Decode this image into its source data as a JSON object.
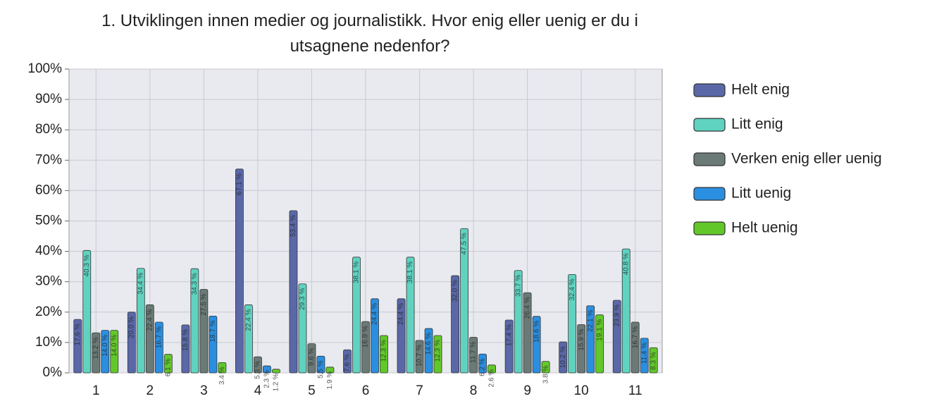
{
  "chart_data": {
    "type": "bar",
    "title": "1. Utviklingen innen medier og journalistikk. Hvor enig eller uenig er du i utsagnene nedenfor?",
    "categories": [
      "1",
      "2",
      "3",
      "4",
      "5",
      "6",
      "7",
      "8",
      "9",
      "10",
      "11"
    ],
    "series": [
      {
        "name": "Helt enig",
        "color": "#5a68a8",
        "values": [
          17.6,
          20.0,
          15.8,
          67.1,
          53.4,
          7.6,
          24.4,
          32.0,
          17.4,
          10.2,
          23.9
        ],
        "value_labels": [
          "17.6 %",
          "20.0 %",
          "15.8 %",
          "67.1 %",
          "53.4 %",
          "7.6 %",
          "24.4 %",
          "32.0 %",
          "17.4 %",
          "10.2 %",
          "23.9 %"
        ]
      },
      {
        "name": "Litt enig",
        "color": "#5fd3c0",
        "values": [
          40.3,
          34.4,
          34.3,
          22.4,
          29.3,
          38.1,
          38.1,
          47.5,
          33.7,
          32.4,
          40.8
        ],
        "value_labels": [
          "40.3 %",
          "34.4 %",
          "34.3 %",
          "22.4 %",
          "29.3 %",
          "38.1 %",
          "38.1 %",
          "47.5 %",
          "33.7 %",
          "32.4 %",
          "40.8 %"
        ]
      },
      {
        "name": "Verken enig eller uenig",
        "color": "#6b7a77",
        "values": [
          13.2,
          22.4,
          27.5,
          5.3,
          9.6,
          16.9,
          10.7,
          11.7,
          26.4,
          15.9,
          16.7
        ],
        "value_labels": [
          "13.2 %",
          "22.4 %",
          "27.5 %",
          "5.3 %",
          "9.6 %",
          "16.9 %",
          "10.7 %",
          "11.7 %",
          "26.4 %",
          "15.9 %",
          "16.7 %"
        ]
      },
      {
        "name": "Litt uenig",
        "color": "#2a8fe0",
        "values": [
          14.0,
          16.7,
          18.7,
          2.3,
          5.5,
          24.4,
          14.6,
          6.2,
          18.6,
          22.1,
          11.4
        ],
        "value_labels": [
          "14.0 %",
          "16.7 %",
          "18.7 %",
          "2.3 %",
          "5.5 %",
          "24.4 %",
          "14.6 %",
          "6.2 %",
          "18.6 %",
          "22.1 %",
          "11.4 %"
        ]
      },
      {
        "name": "Helt uenig",
        "color": "#62c82a",
        "values": [
          14.0,
          6.1,
          3.4,
          1.2,
          1.9,
          12.3,
          12.3,
          2.6,
          3.8,
          19.1,
          8.3
        ],
        "value_labels": [
          "14.0 %",
          "6.1 %",
          "3.4 %",
          "1.2 %",
          "1.9 %",
          "12.3 %",
          "12.3 %",
          "2.6 %",
          "3.8 %",
          "19.1 %",
          "8.3 %"
        ]
      }
    ],
    "ylim": [
      0,
      100
    ],
    "yticks": [
      {
        "value": 0,
        "label": "0%"
      },
      {
        "value": 10,
        "label": "10%"
      },
      {
        "value": 20,
        "label": "20%"
      },
      {
        "value": 30,
        "label": "30%"
      },
      {
        "value": 40,
        "label": "40%"
      },
      {
        "value": 50,
        "label": "50%"
      },
      {
        "value": 60,
        "label": "60%"
      },
      {
        "value": 70,
        "label": "70%"
      },
      {
        "value": 80,
        "label": "80%"
      },
      {
        "value": 90,
        "label": "90%"
      },
      {
        "value": 100,
        "label": "100%"
      }
    ],
    "grid": true,
    "legend": "right"
  }
}
